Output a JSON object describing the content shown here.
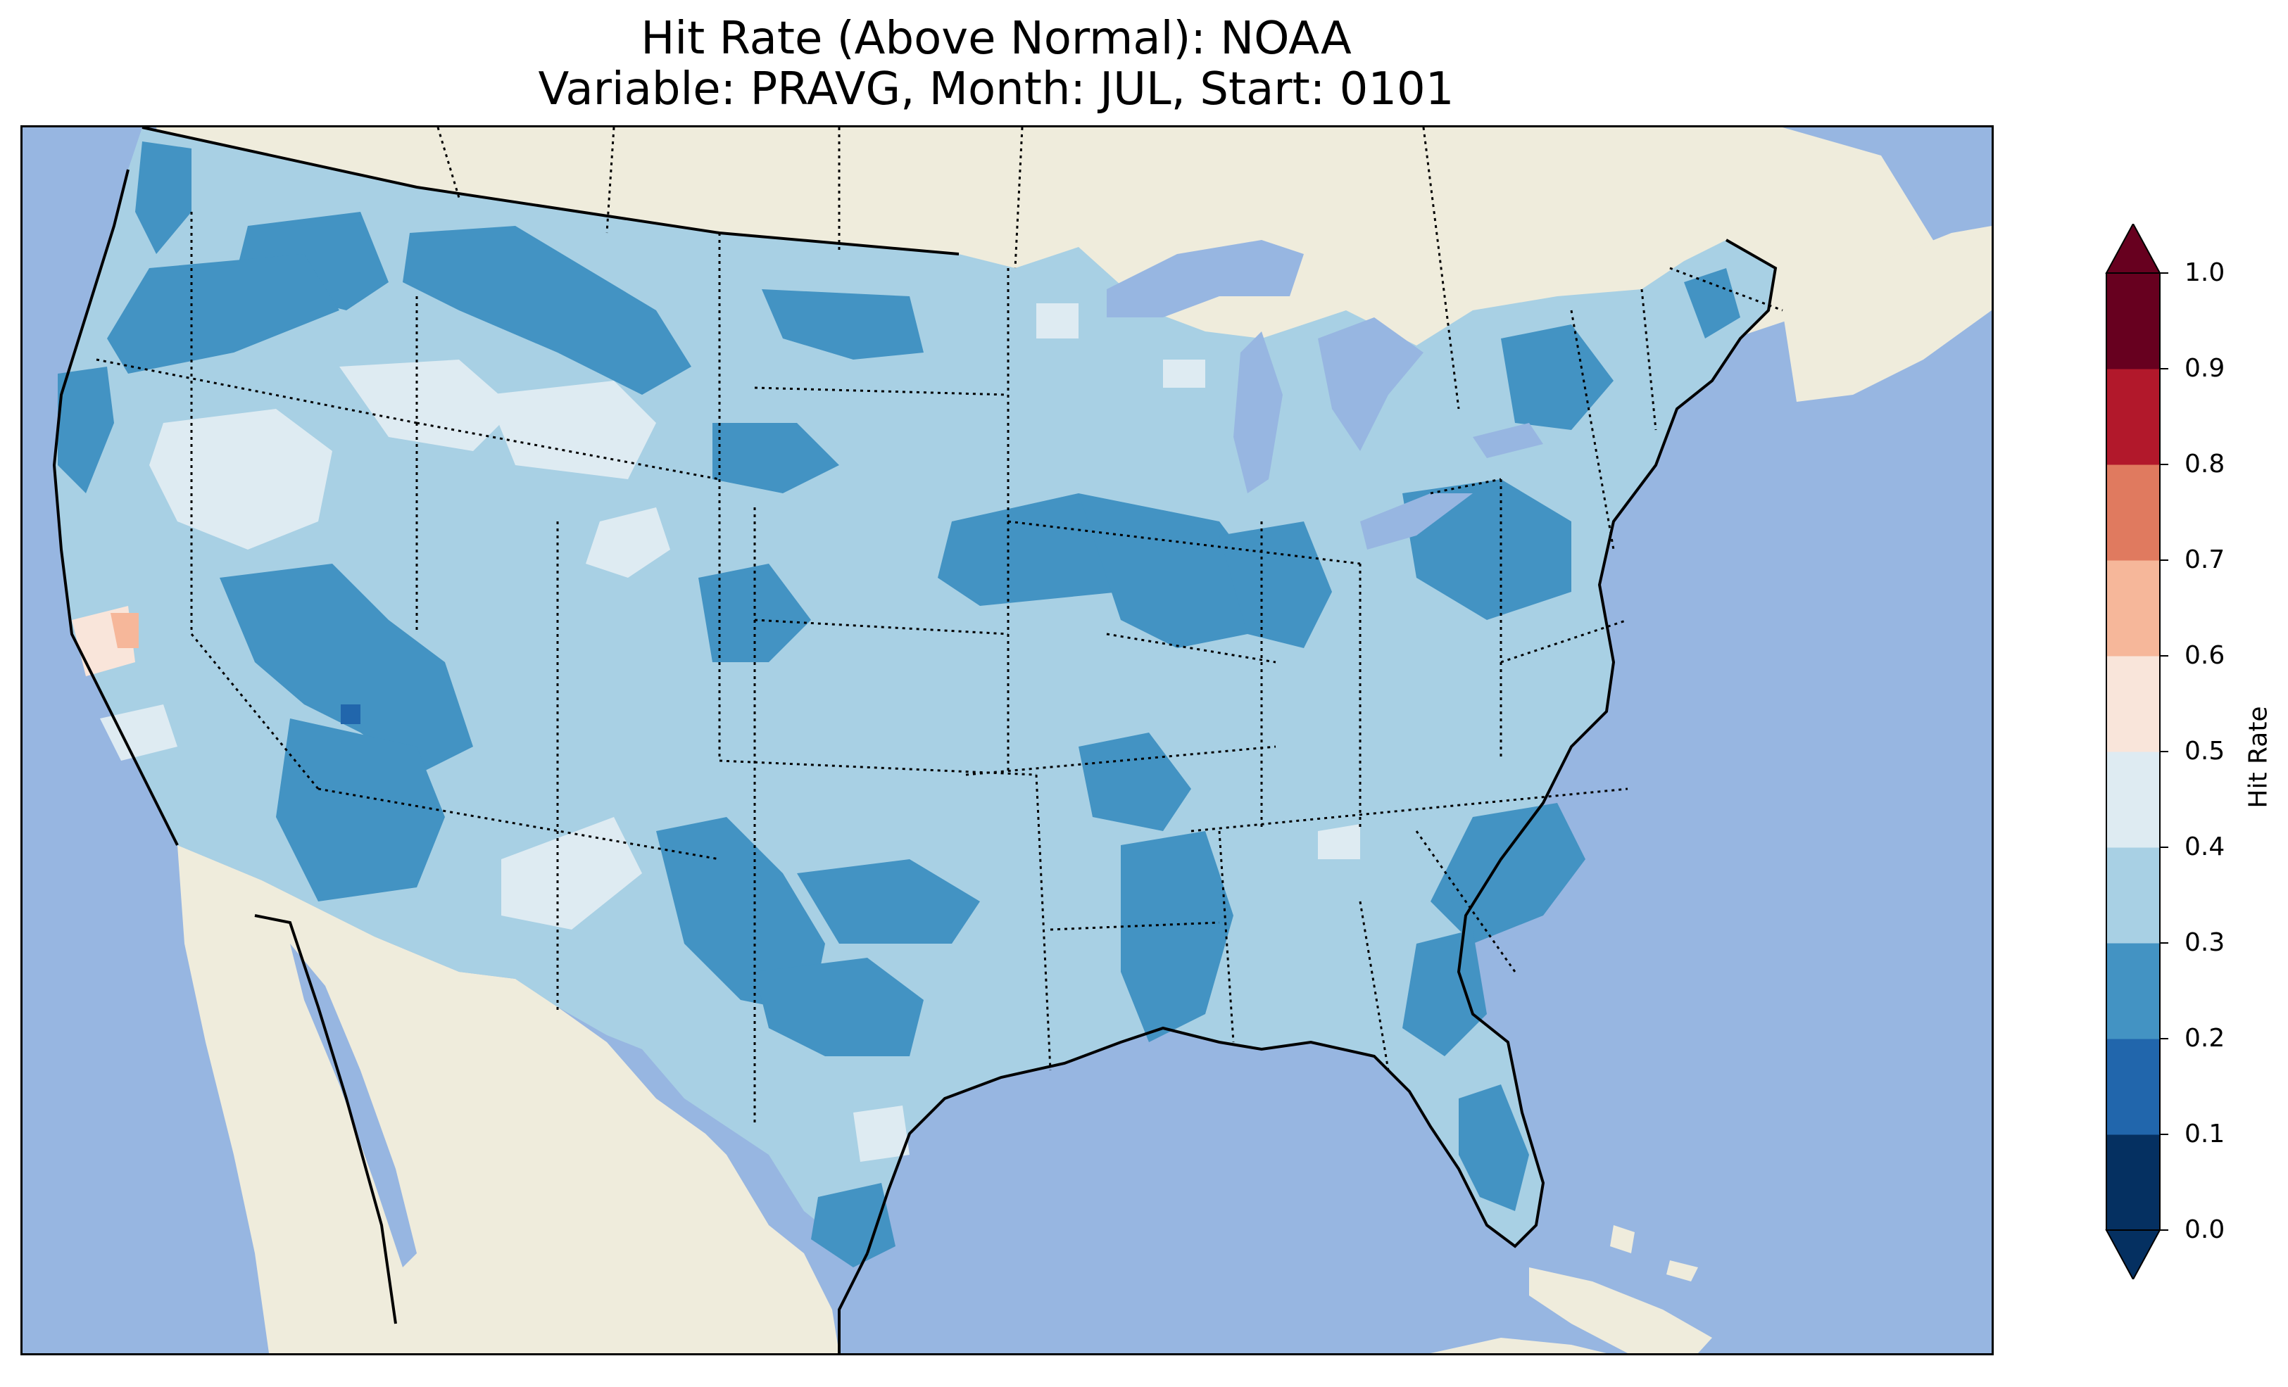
{
  "title": {
    "line1": "Hit Rate (Above Normal): NOAA",
    "line2": "Variable: PRAVG, Month: JUL, Start: 0101"
  },
  "colors": {
    "ocean": "#97b6e1",
    "land": "#efecdc",
    "lake": "#97b6e1",
    "bin_0_1": "#053061",
    "bin_1_2": "#2166ac",
    "bin_2_3": "#4393c3",
    "bin_3_4": "#a8d0e4",
    "bin_4_5": "#deebf2",
    "bin_5_6": "#f9e5da",
    "bin_6_7": "#f6b79a",
    "bin_7_8": "#e07a5f",
    "bin_8_9": "#b2182b",
    "bin_9_10": "#67001f"
  },
  "colorbar": {
    "label": "Hit Rate",
    "ticks": [
      "0.0",
      "0.1",
      "0.2",
      "0.3",
      "0.4",
      "0.5",
      "0.6",
      "0.7",
      "0.8",
      "0.9",
      "1.0"
    ],
    "boundaries": [
      0.0,
      0.1,
      0.2,
      0.3,
      0.4,
      0.5,
      0.6,
      0.7,
      0.8,
      0.9,
      1.0
    ],
    "extend": "both"
  },
  "map": {
    "region": "Contiguous United States",
    "projection": "Plate Carree",
    "dominant_class": "0.3-0.4",
    "features": [
      "coastlines",
      "state borders",
      "country borders",
      "lakes"
    ]
  }
}
